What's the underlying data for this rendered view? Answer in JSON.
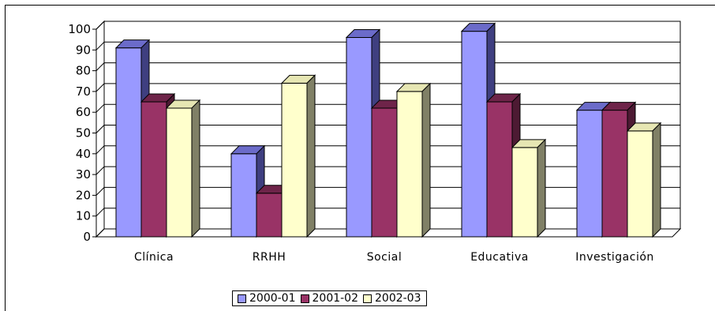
{
  "chart_data": {
    "type": "bar",
    "categories": [
      "Clínica",
      "RRHH",
      "Social",
      "Educativa",
      "Investigación"
    ],
    "series": [
      {
        "name": "2000-01",
        "values": [
          91,
          40,
          96,
          99,
          61
        ],
        "color": "#9999ff",
        "side": "#3f3f80",
        "top": "#6b6bc9"
      },
      {
        "name": "2001-02",
        "values": [
          65,
          21,
          62,
          65,
          61
        ],
        "color": "#993366",
        "side": "#4d1a33",
        "top": "#6e2449"
      },
      {
        "name": "2002-03",
        "values": [
          62,
          74,
          70,
          43,
          51
        ],
        "color": "#ffffcc",
        "side": "#808066",
        "top": "#e6e6b3"
      }
    ],
    "ylim": [
      0,
      100
    ],
    "yticks": [
      "0",
      "10",
      "20",
      "30",
      "40",
      "50",
      "60",
      "70",
      "80",
      "90",
      "100"
    ],
    "grid": true,
    "legend_position": "bottom",
    "title": "",
    "xlabel": "",
    "ylabel": ""
  }
}
